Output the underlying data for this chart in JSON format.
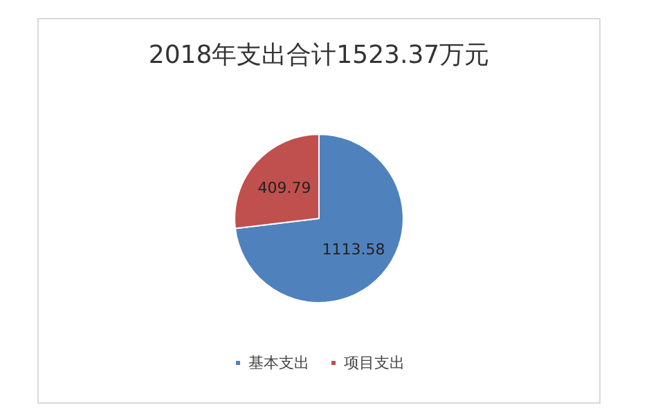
{
  "chart_data": {
    "type": "pie",
    "title": "2018年支出合计1523.37万元",
    "categories": [
      "基本支出",
      "项目支出"
    ],
    "values": [
      1113.58,
      409.79
    ],
    "colors": [
      "#4f81bd",
      "#c0504d"
    ],
    "data_labels": true,
    "legend": "bottom"
  }
}
